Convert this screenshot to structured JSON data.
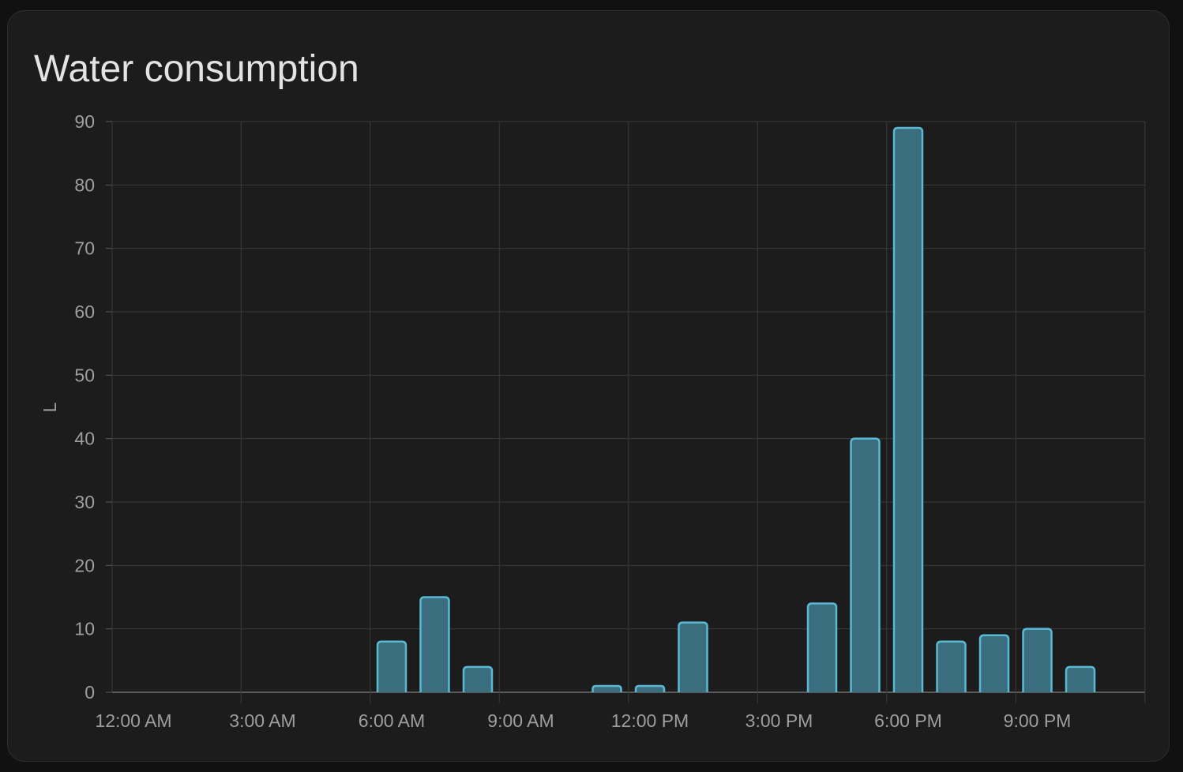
{
  "card": {
    "title": "Water consumption"
  },
  "colors": {
    "background": "#111111",
    "card": "#1c1c1c",
    "grid": "#3a3a3a",
    "axis": "#5a5a5a",
    "bar_fill": "#3a6e7e",
    "bar_stroke": "#5ab8d4",
    "text": "#9e9e9e",
    "title": "#e3e3e3"
  },
  "chart_data": {
    "type": "bar",
    "title": "Water consumption",
    "xlabel": "",
    "ylabel": "L",
    "ylim": [
      0,
      90
    ],
    "yticks": [
      0,
      10,
      20,
      30,
      40,
      50,
      60,
      70,
      80,
      90
    ],
    "xticks": [
      "12:00 AM",
      "3:00 AM",
      "6:00 AM",
      "9:00 AM",
      "12:00 PM",
      "3:00 PM",
      "6:00 PM",
      "9:00 PM"
    ],
    "grid": true,
    "categories": [
      "12:00 AM",
      "1:00 AM",
      "2:00 AM",
      "3:00 AM",
      "4:00 AM",
      "5:00 AM",
      "6:00 AM",
      "7:00 AM",
      "8:00 AM",
      "9:00 AM",
      "10:00 AM",
      "11:00 AM",
      "12:00 PM",
      "1:00 PM",
      "2:00 PM",
      "3:00 PM",
      "4:00 PM",
      "5:00 PM",
      "6:00 PM",
      "7:00 PM",
      "8:00 PM",
      "9:00 PM",
      "10:00 PM",
      "11:00 PM"
    ],
    "values": [
      0,
      0,
      0,
      0,
      0,
      0,
      8,
      15,
      4,
      0,
      0,
      1,
      1,
      11,
      0,
      0,
      14,
      40,
      89,
      8,
      9,
      10,
      4,
      0
    ]
  }
}
